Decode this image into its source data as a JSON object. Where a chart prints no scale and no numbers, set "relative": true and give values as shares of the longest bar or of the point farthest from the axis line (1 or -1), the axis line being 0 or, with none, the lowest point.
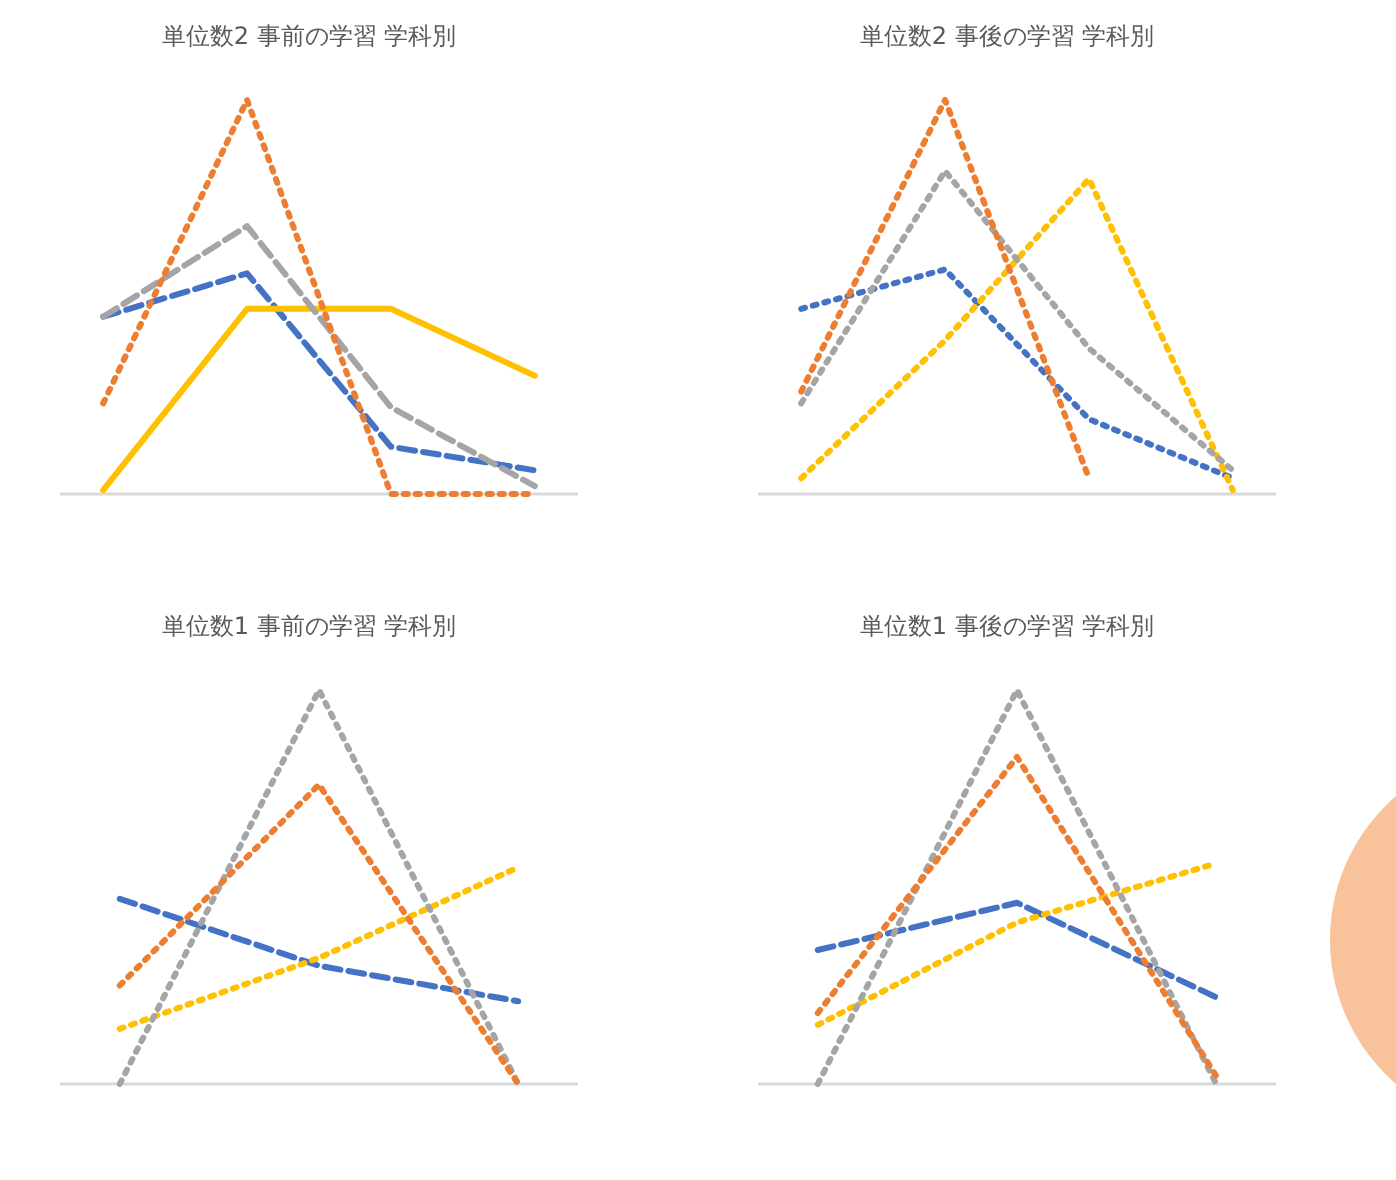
{
  "chart_data": [
    {
      "type": "line",
      "title": "単位数2 事前の学習 学科別",
      "relative": true,
      "categories": [
        null,
        null,
        null,
        null
      ],
      "series": [
        {
          "color": "#4472c4",
          "line_style": "dashed",
          "values": [
            0.45,
            0.56,
            0.12,
            0.06
          ]
        },
        {
          "color": "#ffc000",
          "line_style": "solid",
          "values": [
            0.01,
            0.47,
            0.47,
            0.3
          ]
        },
        {
          "color": "#a5a5a5",
          "line_style": "dashed",
          "values": [
            0.45,
            0.68,
            0.22,
            0.02
          ]
        },
        {
          "color": "#ed7d31",
          "line_style": "dotted",
          "values": [
            0.23,
            1,
            0,
            0
          ]
        }
      ]
    },
    {
      "type": "line",
      "title": "単位数2 事後の学習 学科別",
      "relative": true,
      "categories": [
        null,
        null,
        null,
        null
      ],
      "series": [
        {
          "color": "#4472c4",
          "line_style": "dotted",
          "values": [
            0.47,
            0.57,
            0.19,
            0.04
          ]
        },
        {
          "color": "#ffc000",
          "line_style": "dotted",
          "values": [
            0.04,
            0.39,
            0.8,
            0.01
          ]
        },
        {
          "color": "#a5a5a5",
          "line_style": "dotted",
          "values": [
            0.23,
            0.82,
            0.37,
            0.06
          ]
        },
        {
          "color": "#ed7d31",
          "line_style": "dotted",
          "values": [
            0.26,
            1,
            0.04,
            null
          ]
        }
      ]
    },
    {
      "type": "line",
      "title": "単位数1 事前の学習 学科別",
      "relative": true,
      "categories": [
        null,
        null,
        null
      ],
      "series": [
        {
          "color": "#4472c4",
          "line_style": "dashed",
          "values": [
            0.47,
            0.3,
            0.21
          ]
        },
        {
          "color": "#ffc000",
          "line_style": "dotted",
          "values": [
            0.14,
            0.32,
            0.55
          ]
        },
        {
          "color": "#a5a5a5",
          "line_style": "dotted",
          "values": [
            0,
            1,
            0
          ]
        },
        {
          "color": "#ed7d31",
          "line_style": "dotted",
          "values": [
            0.25,
            0.76,
            0
          ]
        }
      ]
    },
    {
      "type": "line",
      "title": "単位数1 事後の学習 学科別",
      "relative": true,
      "categories": [
        null,
        null,
        null
      ],
      "series": [
        {
          "color": "#4472c4",
          "line_style": "dashed",
          "values": [
            0.34,
            0.46,
            0.22
          ]
        },
        {
          "color": "#ffc000",
          "line_style": "dotted",
          "values": [
            0.15,
            0.41,
            0.56
          ]
        },
        {
          "color": "#a5a5a5",
          "line_style": "dotted",
          "values": [
            0,
            1,
            0
          ]
        },
        {
          "color": "#ed7d31",
          "line_style": "dotted",
          "values": [
            0.18,
            0.83,
            0.02
          ]
        }
      ]
    }
  ]
}
